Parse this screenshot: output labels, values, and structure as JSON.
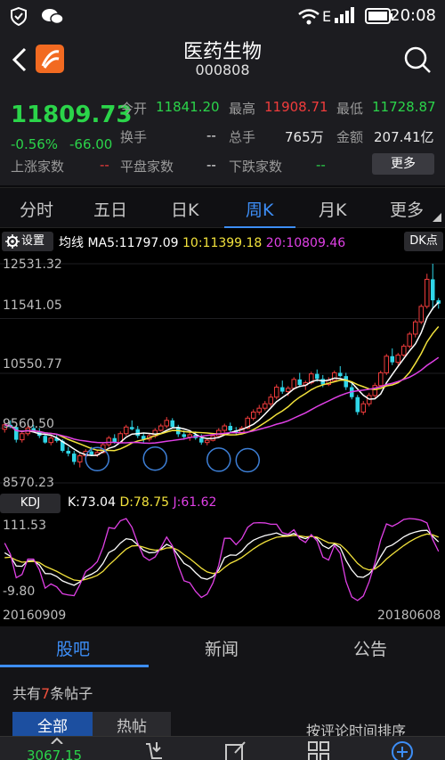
{
  "status_bar": {
    "time": "20:08"
  },
  "header": {
    "title": "医药生物",
    "code": "000808"
  },
  "quote": {
    "price": "11809.73",
    "change_pct": "-0.56%",
    "change": "-66.00",
    "open_label": "今开",
    "open": "11841.20",
    "high_label": "最高",
    "high": "11908.71",
    "low_label": "最低",
    "low": "11728.87",
    "turnover_label": "换手",
    "turnover": "--",
    "volume_label": "总手",
    "volume": "765万",
    "amount_label": "金额",
    "amount": "207.41亿",
    "up_label": "上涨家数",
    "up": "--",
    "flat_label": "平盘家数",
    "flat": "--",
    "down_label": "下跌家数",
    "down": "--",
    "more_label": "更多"
  },
  "period_tabs": [
    {
      "label": "分时"
    },
    {
      "label": "五日"
    },
    {
      "label": "日K"
    },
    {
      "label": "周K",
      "active": true
    },
    {
      "label": "月K"
    },
    {
      "label": "更多"
    }
  ],
  "chart_toolbar": {
    "settings_label": "设置",
    "ma_label": "均线",
    "ma5": "MA5:11797.09",
    "ma10": "10:11399.18",
    "ma20": "20:10809.46",
    "dk_label": "DK点",
    "kdj_label": "KDJ",
    "k": "K:73.04",
    "d": "D:78.75",
    "j": "J:61.62"
  },
  "colors": {
    "up": "#f03c3c",
    "down": "#2fd6e8",
    "ma5": "#ffffff",
    "ma10": "#f2e23c",
    "ma20": "#e040e6",
    "accent": "#3d8ef7",
    "green": "#2bd44a"
  },
  "chart_data": [
    {
      "type": "candlestick",
      "title": "",
      "y_ticks": [
        "12531.32",
        "11541.05",
        "10550.77",
        "9560.50",
        "8570.23"
      ],
      "ylim": [
        8570.23,
        12531.32
      ],
      "x_start": "20160909",
      "x_end": "20180608",
      "candles": [
        [
          9540,
          9650,
          9480,
          9620
        ],
        [
          9620,
          9700,
          9560,
          9580
        ],
        [
          9580,
          9620,
          9300,
          9350
        ],
        [
          9350,
          9500,
          9300,
          9460
        ],
        [
          9460,
          9600,
          9420,
          9560
        ],
        [
          9560,
          9620,
          9480,
          9500
        ],
        [
          9500,
          9560,
          9380,
          9420
        ],
        [
          9420,
          9480,
          9280,
          9300
        ],
        [
          9300,
          9420,
          9250,
          9380
        ],
        [
          9380,
          9460,
          9300,
          9330
        ],
        [
          9330,
          9360,
          9120,
          9150
        ],
        [
          9150,
          9220,
          9050,
          9100
        ],
        [
          9100,
          9150,
          8900,
          8950
        ],
        [
          8950,
          9100,
          8850,
          9060
        ],
        [
          9060,
          9180,
          9000,
          9140
        ],
        [
          9140,
          9220,
          9060,
          9080
        ],
        [
          9080,
          9160,
          9040,
          9120
        ],
        [
          9120,
          9300,
          9100,
          9260
        ],
        [
          9260,
          9420,
          9220,
          9380
        ],
        [
          9380,
          9450,
          9280,
          9300
        ],
        [
          9300,
          9500,
          9280,
          9460
        ],
        [
          9460,
          9620,
          9420,
          9580
        ],
        [
          9580,
          9700,
          9520,
          9540
        ],
        [
          9540,
          9600,
          9380,
          9420
        ],
        [
          9420,
          9480,
          9300,
          9360
        ],
        [
          9360,
          9460,
          9320,
          9420
        ],
        [
          9420,
          9560,
          9380,
          9520
        ],
        [
          9520,
          9640,
          9500,
          9600
        ],
        [
          9600,
          9760,
          9560,
          9700
        ],
        [
          9700,
          9740,
          9560,
          9580
        ],
        [
          9580,
          9620,
          9400,
          9450
        ],
        [
          9450,
          9520,
          9350,
          9400
        ],
        [
          9400,
          9480,
          9330,
          9440
        ],
        [
          9440,
          9500,
          9350,
          9380
        ],
        [
          9380,
          9450,
          9260,
          9300
        ],
        [
          9300,
          9380,
          9250,
          9340
        ],
        [
          9340,
          9460,
          9320,
          9420
        ],
        [
          9420,
          9560,
          9400,
          9520
        ],
        [
          9520,
          9640,
          9480,
          9600
        ],
        [
          9600,
          9660,
          9480,
          9520
        ],
        [
          9520,
          9580,
          9440,
          9480
        ],
        [
          9480,
          9600,
          9460,
          9560
        ],
        [
          9560,
          9780,
          9540,
          9740
        ],
        [
          9740,
          9900,
          9700,
          9850
        ],
        [
          9850,
          9980,
          9800,
          9920
        ],
        [
          9920,
          10050,
          9880,
          10000
        ],
        [
          10000,
          10180,
          9950,
          10120
        ],
        [
          10120,
          10350,
          10080,
          10300
        ],
        [
          10300,
          10420,
          10180,
          10220
        ],
        [
          10220,
          10320,
          10140,
          10280
        ],
        [
          10280,
          10480,
          10250,
          10440
        ],
        [
          10440,
          10560,
          10300,
          10340
        ],
        [
          10340,
          10420,
          10250,
          10380
        ],
        [
          10380,
          10580,
          10350,
          10540
        ],
        [
          10540,
          10620,
          10400,
          10450
        ],
        [
          10450,
          10520,
          10300,
          10350
        ],
        [
          10350,
          10480,
          10320,
          10420
        ],
        [
          10420,
          10600,
          10400,
          10560
        ],
        [
          10560,
          10680,
          10480,
          10500
        ],
        [
          10500,
          10560,
          10250,
          10300
        ],
        [
          10300,
          10380,
          10080,
          10120
        ],
        [
          10120,
          10160,
          9800,
          9850
        ],
        [
          9850,
          10050,
          9800,
          10000
        ],
        [
          10000,
          10200,
          9950,
          10150
        ],
        [
          10150,
          10380,
          10100,
          10330
        ],
        [
          10330,
          10600,
          10300,
          10560
        ],
        [
          10560,
          10900,
          10520,
          10860
        ],
        [
          10860,
          11000,
          10700,
          10750
        ],
        [
          10750,
          10920,
          10700,
          10880
        ],
        [
          10880,
          11080,
          10850,
          11040
        ],
        [
          11040,
          11300,
          11000,
          11260
        ],
        [
          11260,
          11520,
          11200,
          11480
        ],
        [
          11480,
          11800,
          11440,
          11760
        ],
        [
          11760,
          12350,
          11720,
          12250
        ],
        [
          12250,
          12531,
          11700,
          11870
        ],
        [
          11870,
          11910,
          11720,
          11810
        ]
      ],
      "series": [
        {
          "name": "MA5"
        },
        {
          "name": "10"
        },
        {
          "name": "20"
        }
      ]
    },
    {
      "type": "line",
      "title": "",
      "y_ticks": [
        "111.53",
        "-9.80"
      ],
      "ylim": [
        -9.8,
        111.53
      ]
    }
  ],
  "bottom_tabs": [
    {
      "label": "股吧",
      "active": true
    },
    {
      "label": "新闻"
    },
    {
      "label": "公告"
    }
  ],
  "posts": {
    "prefix": "共有",
    "count": "7",
    "suffix": "条帖子",
    "seg_all": "全部",
    "seg_hot": "热帖",
    "sort_label": "按评论时间排序"
  },
  "bottom_bar": {
    "index_value": "3067.15"
  }
}
